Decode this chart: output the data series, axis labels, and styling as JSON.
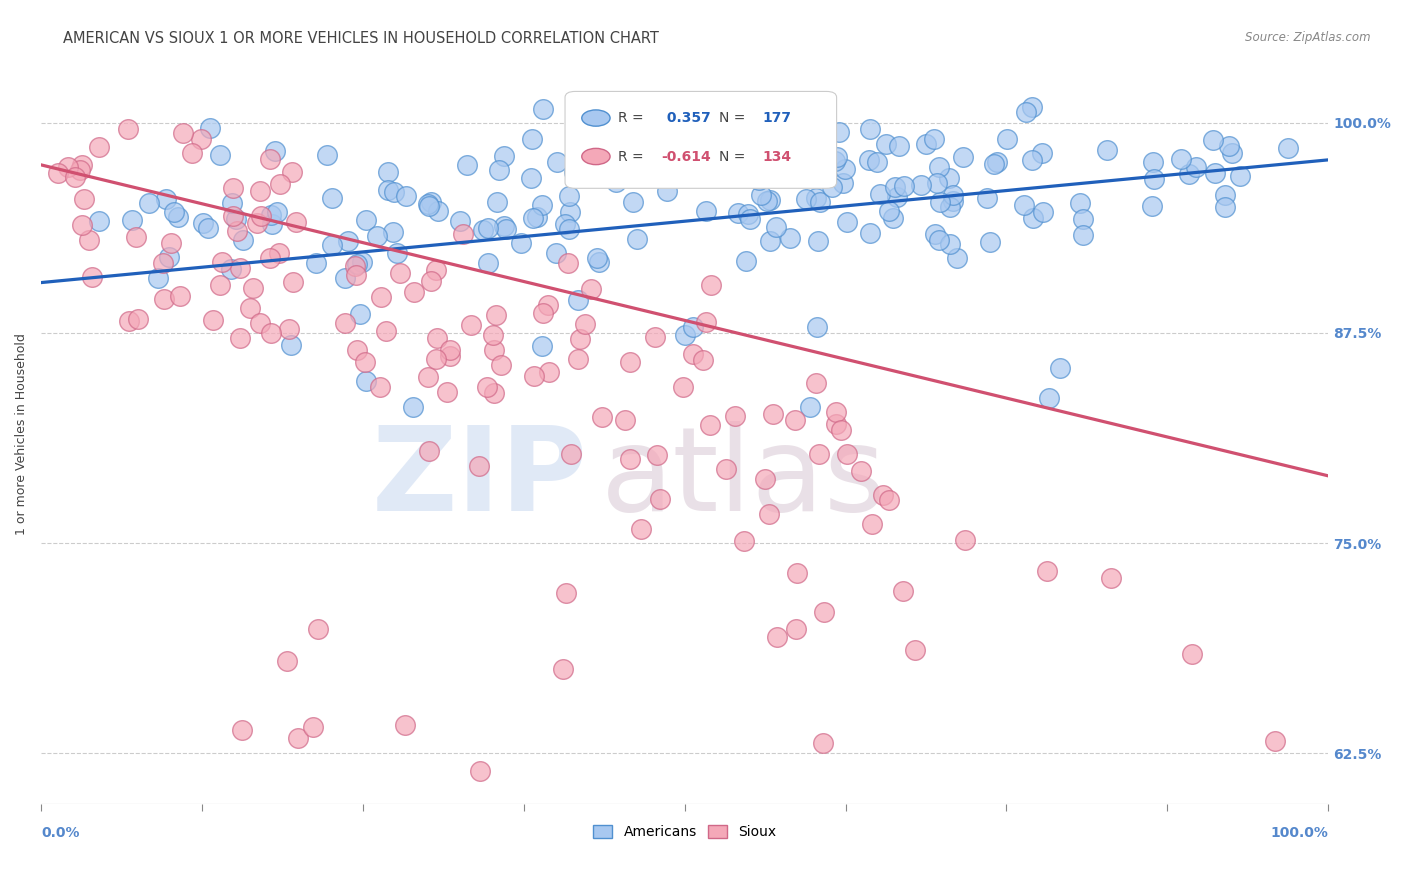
{
  "title": "AMERICAN VS SIOUX 1 OR MORE VEHICLES IN HOUSEHOLD CORRELATION CHART",
  "source": "Source: ZipAtlas.com",
  "ylabel": "1 or more Vehicles in Household",
  "yticks_vals": [
    0.625,
    0.75,
    0.875,
    1.0
  ],
  "yticks_labels": [
    "62.5%",
    "75.0%",
    "87.5%",
    "100.0%"
  ],
  "r_american": 0.357,
  "n_american": 177,
  "r_sioux": -0.614,
  "n_sioux": 134,
  "american_color": "#A8C8F0",
  "sioux_color": "#F4A8B8",
  "american_edge_color": "#5090D0",
  "sioux_edge_color": "#D06888",
  "american_line_color": "#2060BB",
  "sioux_line_color": "#D05070",
  "watermark_zip_color": "#C8D8F0",
  "watermark_atlas_color": "#D8C8D4",
  "background_color": "#ffffff",
  "grid_color": "#cccccc",
  "title_color": "#444444",
  "source_color": "#888888",
  "tick_label_color": "#5588CC",
  "ylabel_color": "#444444",
  "title_fontsize": 10.5,
  "tick_fontsize": 10,
  "american_seed": 42,
  "sioux_seed": 7,
  "xmin": 0.0,
  "xmax": 1.0,
  "ymin": 0.595,
  "ymax": 1.035,
  "am_line_x0": 0.0,
  "am_line_y0": 0.905,
  "am_line_x1": 1.0,
  "am_line_y1": 0.978,
  "si_line_x0": 0.0,
  "si_line_y0": 0.975,
  "si_line_x1": 1.0,
  "si_line_y1": 0.79
}
